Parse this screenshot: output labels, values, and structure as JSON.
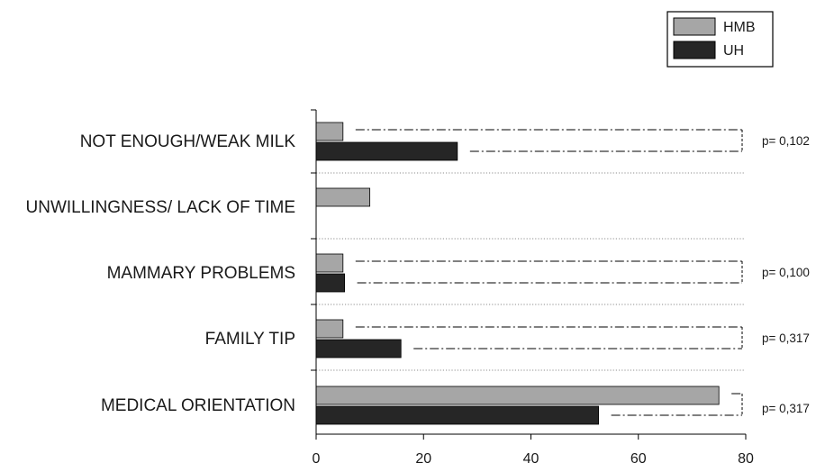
{
  "chart_data": {
    "type": "bar",
    "orientation": "horizontal",
    "categories": [
      "NOT ENOUGH/WEAK MILK",
      "UNWILLINGNESS/ LACK OF TIME",
      "MAMMARY PROBLEMS",
      "FAMILY TIP",
      "MEDICAL ORIENTATION"
    ],
    "series": [
      {
        "name": "HMB",
        "color": "#a6a6a6",
        "values": [
          5,
          10,
          5,
          5,
          75
        ]
      },
      {
        "name": "UH",
        "color": "#262626",
        "values": [
          26.3,
          0,
          5.3,
          15.8,
          52.6
        ]
      }
    ],
    "p_values": [
      "p= 0,102",
      "",
      "p= 0,100",
      "p= 0,317",
      "p= 0,317"
    ],
    "xlim": [
      0,
      80
    ],
    "xticks": [
      0,
      20,
      40,
      60,
      80
    ],
    "title": "",
    "xlabel": "",
    "ylabel": "",
    "legend": "top-right",
    "grid": "dotted category separators"
  }
}
